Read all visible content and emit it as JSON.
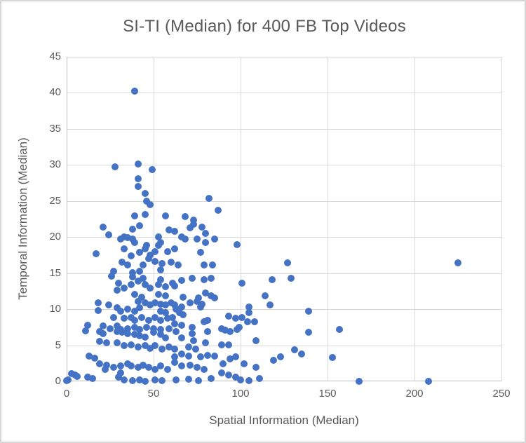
{
  "chart_data": {
    "type": "scatter",
    "title": "SI-TI (Median) for 400 FB Top Videos",
    "xlabel": "Spatial Information (Median)",
    "ylabel": "Temporal Information (Median)",
    "xlim": [
      0,
      250
    ],
    "ylim": [
      0,
      45
    ],
    "x_ticks": [
      0,
      50,
      100,
      150,
      200,
      250
    ],
    "y_ticks": [
      0,
      5,
      10,
      15,
      20,
      25,
      30,
      35,
      40,
      45
    ],
    "grid": true,
    "legend_position": "none",
    "marker_color": "#4472C4",
    "grid_color": "#D9D9D9",
    "axis_color": "#BFBFBF",
    "text_color": "#595959",
    "points": [
      [
        39,
        40.2
      ],
      [
        28,
        29.7
      ],
      [
        41,
        30.1
      ],
      [
        49,
        29.4
      ],
      [
        41,
        28.1
      ],
      [
        41,
        27
      ],
      [
        45,
        26
      ],
      [
        46,
        25
      ],
      [
        48,
        24.5
      ],
      [
        82,
        25.4
      ],
      [
        87,
        23.7
      ],
      [
        39,
        22.9
      ],
      [
        45,
        23.1
      ],
      [
        57,
        22.9
      ],
      [
        68,
        22.8
      ],
      [
        73,
        22.4
      ],
      [
        21,
        21.4
      ],
      [
        38,
        21.1
      ],
      [
        42,
        21.6
      ],
      [
        59,
        21
      ],
      [
        71,
        21.3
      ],
      [
        73,
        21.8
      ],
      [
        78,
        21.4
      ],
      [
        24,
        20.3
      ],
      [
        31,
        19.7
      ],
      [
        33,
        20
      ],
      [
        35,
        19.9
      ],
      [
        38,
        19.7
      ],
      [
        39,
        19.2
      ],
      [
        46,
        18.9
      ],
      [
        53,
        20
      ],
      [
        54,
        19.2
      ],
      [
        62,
        20.8
      ],
      [
        66,
        20
      ],
      [
        68,
        19.7
      ],
      [
        75,
        19.7
      ],
      [
        80,
        20.5
      ],
      [
        80,
        19.2
      ],
      [
        85,
        19.7
      ],
      [
        98,
        19
      ],
      [
        17,
        17.7
      ],
      [
        33,
        18.4
      ],
      [
        37,
        17.4
      ],
      [
        42,
        17.9
      ],
      [
        45,
        18.4
      ],
      [
        48,
        17.5
      ],
      [
        51,
        18
      ],
      [
        53,
        18.9
      ],
      [
        58,
        18
      ],
      [
        62,
        18.4
      ],
      [
        77,
        17.9
      ],
      [
        27,
        15.3
      ],
      [
        32,
        16.5
      ],
      [
        35,
        16.1
      ],
      [
        38,
        15.1
      ],
      [
        42,
        15.3
      ],
      [
        44,
        16.1
      ],
      [
        47,
        17
      ],
      [
        51,
        16.6
      ],
      [
        54,
        15.5
      ],
      [
        55,
        16.3
      ],
      [
        60,
        16.5
      ],
      [
        64,
        16.1
      ],
      [
        79,
        16.1
      ],
      [
        84,
        16.1
      ],
      [
        127,
        16.4
      ],
      [
        225,
        16.4
      ],
      [
        26,
        14.6
      ],
      [
        30,
        13.6
      ],
      [
        29,
        12.6
      ],
      [
        33,
        12.9
      ],
      [
        37,
        13.4
      ],
      [
        38,
        14.5
      ],
      [
        41,
        13.9
      ],
      [
        44,
        14.3
      ],
      [
        45,
        13.4
      ],
      [
        48,
        12.9
      ],
      [
        53,
        13.4
      ],
      [
        54,
        14.1
      ],
      [
        57,
        13.1
      ],
      [
        61,
        13.6
      ],
      [
        62,
        13.2
      ],
      [
        66,
        14
      ],
      [
        72,
        14.3
      ],
      [
        79,
        14.1
      ],
      [
        83,
        14.3
      ],
      [
        101,
        13.6
      ],
      [
        118,
        14.1
      ],
      [
        129,
        14.3
      ],
      [
        39,
        12.1
      ],
      [
        43,
        11.7
      ],
      [
        53,
        12.1
      ],
      [
        57,
        11.9
      ],
      [
        67,
        11.7
      ],
      [
        71,
        10.9
      ],
      [
        75,
        11.1
      ],
      [
        76,
        11.6
      ],
      [
        78,
        10.7
      ],
      [
        80,
        12.2
      ],
      [
        83,
        11.9
      ],
      [
        85,
        11.6
      ],
      [
        114,
        11.9
      ],
      [
        18,
        10.9
      ],
      [
        18,
        9.8
      ],
      [
        24,
        10.6
      ],
      [
        29,
        10.2
      ],
      [
        31,
        9.7
      ],
      [
        35,
        10
      ],
      [
        39,
        9.7
      ],
      [
        41,
        11.1
      ],
      [
        42,
        10.2
      ],
      [
        45,
        10.9
      ],
      [
        48,
        10.6
      ],
      [
        51,
        10.9
      ],
      [
        54,
        10.7
      ],
      [
        54,
        9.7
      ],
      [
        57,
        10.6
      ],
      [
        57,
        9.5
      ],
      [
        60,
        10.9
      ],
      [
        62,
        10.6
      ],
      [
        63,
        10
      ],
      [
        65,
        9.5
      ],
      [
        66,
        10.3
      ],
      [
        67,
        9.2
      ],
      [
        77,
        10.3
      ],
      [
        105,
        10.3
      ],
      [
        105,
        9.5
      ],
      [
        117,
        10.6
      ],
      [
        139,
        9.7
      ],
      [
        27,
        8.8
      ],
      [
        33,
        8.7
      ],
      [
        37,
        8.8
      ],
      [
        39,
        8.5
      ],
      [
        43,
        8.8
      ],
      [
        47,
        8.5
      ],
      [
        51,
        8.8
      ],
      [
        54,
        8.5
      ],
      [
        58,
        8.7
      ],
      [
        61,
        8.8
      ],
      [
        62,
        8
      ],
      [
        79,
        8.3
      ],
      [
        81,
        8.5
      ],
      [
        93,
        9
      ],
      [
        97,
        8.7
      ],
      [
        101,
        8.8
      ],
      [
        104,
        8.3
      ],
      [
        108,
        8.3
      ],
      [
        12,
        7.8
      ],
      [
        21,
        7.7
      ],
      [
        25,
        7.3
      ],
      [
        29,
        7.7
      ],
      [
        31,
        7.2
      ],
      [
        35,
        7.3
      ],
      [
        39,
        7.5
      ],
      [
        42,
        7.2
      ],
      [
        46,
        7.5
      ],
      [
        50,
        7.3
      ],
      [
        54,
        7.2
      ],
      [
        59,
        7.3
      ],
      [
        66,
        7.8
      ],
      [
        72,
        7.5
      ],
      [
        89,
        7.3
      ],
      [
        91,
        7.1
      ],
      [
        98,
        7.2
      ],
      [
        99,
        7.5
      ],
      [
        157,
        7.2
      ],
      [
        139,
        6.8
      ],
      [
        11,
        7
      ],
      [
        19,
        6.9
      ],
      [
        21,
        6.6
      ],
      [
        29,
        6.9
      ],
      [
        32,
        6.8
      ],
      [
        35,
        6.6
      ],
      [
        39,
        6.5
      ],
      [
        42,
        6.3
      ],
      [
        45,
        6.1
      ],
      [
        50,
        6.8
      ],
      [
        54,
        6.5
      ],
      [
        57,
        6
      ],
      [
        63,
        6.9
      ],
      [
        66,
        6
      ],
      [
        72,
        6.6
      ],
      [
        81,
        6.9
      ],
      [
        94,
        6.9
      ],
      [
        19,
        5.5
      ],
      [
        23,
        5.3
      ],
      [
        29,
        5.3
      ],
      [
        33,
        5
      ],
      [
        37,
        5.1
      ],
      [
        41,
        4.8
      ],
      [
        45,
        5
      ],
      [
        48,
        4.6
      ],
      [
        51,
        5
      ],
      [
        55,
        4.5
      ],
      [
        59,
        4.8
      ],
      [
        62,
        4.5
      ],
      [
        70,
        4.8
      ],
      [
        73,
        5.6
      ],
      [
        74,
        4.5
      ],
      [
        80,
        5.3
      ],
      [
        89,
        5.1
      ],
      [
        93,
        5.1
      ],
      [
        109,
        5.6
      ],
      [
        131,
        4.4
      ],
      [
        13,
        3.5
      ],
      [
        16,
        3.2
      ],
      [
        62,
        3.4
      ],
      [
        66,
        3.8
      ],
      [
        70,
        3.5
      ],
      [
        77,
        3.4
      ],
      [
        81,
        3.6
      ],
      [
        85,
        3.5
      ],
      [
        90,
        2.4
      ],
      [
        94,
        3.1
      ],
      [
        97,
        3.4
      ],
      [
        102,
        2.4
      ],
      [
        119,
        2.9
      ],
      [
        123,
        3.4
      ],
      [
        135,
        3.8
      ],
      [
        153,
        3.3
      ],
      [
        19,
        2.4
      ],
      [
        22,
        1.7
      ],
      [
        23,
        2.2
      ],
      [
        27,
        1.9
      ],
      [
        31,
        2.1
      ],
      [
        31,
        1.2
      ],
      [
        35,
        2.4
      ],
      [
        37,
        2.1
      ],
      [
        41,
        1.9
      ],
      [
        44,
        2.2
      ],
      [
        47,
        1.9
      ],
      [
        51,
        1.7
      ],
      [
        54,
        2.1
      ],
      [
        58,
        1.7
      ],
      [
        62,
        2.6
      ],
      [
        66,
        2.1
      ],
      [
        71,
        2.2
      ],
      [
        75,
        1.9
      ],
      [
        79,
        1.7
      ],
      [
        109,
        1.9
      ],
      [
        0,
        0.1
      ],
      [
        1,
        0.2
      ],
      [
        3,
        1.1
      ],
      [
        5,
        0.9
      ],
      [
        6,
        0.7
      ],
      [
        12,
        0.6
      ],
      [
        15,
        0.4
      ],
      [
        30,
        0.6
      ],
      [
        33,
        0.2
      ],
      [
        38,
        0.1
      ],
      [
        42,
        0.2
      ],
      [
        45,
        0
      ],
      [
        51,
        0.2
      ],
      [
        55,
        0.1
      ],
      [
        63,
        0.2
      ],
      [
        70,
        0.3
      ],
      [
        76,
        0.1
      ],
      [
        83,
        0.4
      ],
      [
        89,
        1.2
      ],
      [
        93,
        0.9
      ],
      [
        97,
        0.6
      ],
      [
        100,
        0.2
      ],
      [
        105,
        0.1
      ],
      [
        111,
        0.4
      ],
      [
        168,
        0
      ],
      [
        208,
        0
      ]
    ]
  }
}
